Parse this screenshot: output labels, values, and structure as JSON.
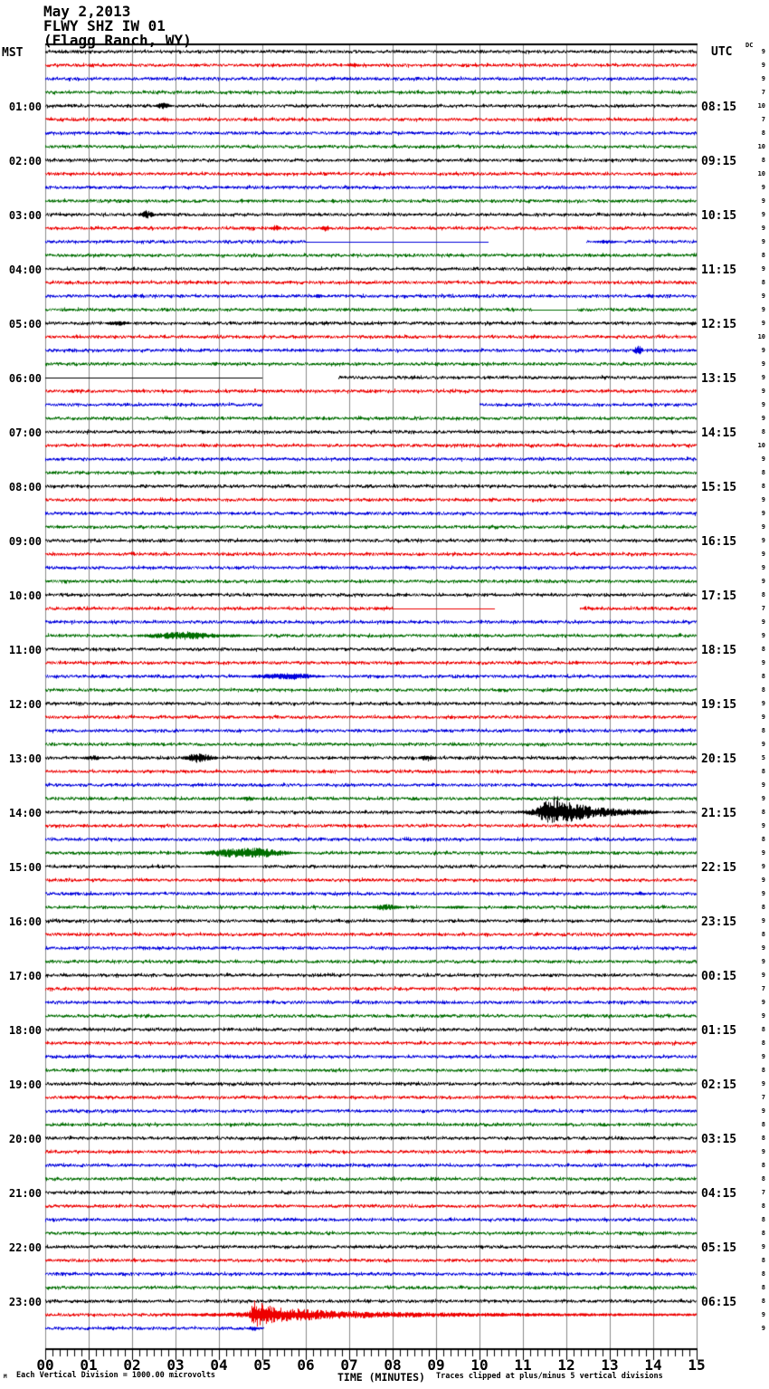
{
  "header": {
    "date": "May 2,2013",
    "station": "FLWY SHZ IW 01",
    "location": "(Flagg Ranch, WY)"
  },
  "left_axis": {
    "label": "MST",
    "hour_labels": [
      "01:00",
      "02:00",
      "03:00",
      "04:00",
      "05:00",
      "06:00",
      "07:00",
      "08:00",
      "09:00",
      "10:00",
      "11:00",
      "12:00",
      "13:00",
      "14:00",
      "15:00",
      "16:00",
      "17:00",
      "18:00",
      "19:00",
      "20:00",
      "21:00",
      "22:00",
      "23:00"
    ]
  },
  "right_axis": {
    "label": "UTC",
    "dc_header": "DC",
    "hour_labels": [
      "08:15",
      "09:15",
      "10:15",
      "11:15",
      "12:15",
      "13:15",
      "14:15",
      "15:15",
      "16:15",
      "17:15",
      "18:15",
      "19:15",
      "20:15",
      "21:15",
      "22:15",
      "23:15",
      "00:15",
      "01:15",
      "02:15",
      "03:15",
      "04:15",
      "05:15",
      "06:15"
    ]
  },
  "x_axis": {
    "title": "TIME (MINUTES)",
    "tick_labels": [
      "00",
      "01",
      "02",
      "03",
      "04",
      "05",
      "06",
      "07",
      "08",
      "09",
      "10",
      "11",
      "12",
      "13",
      "14",
      "15"
    ]
  },
  "footer": {
    "corner_mark": "M",
    "scale_note": "Each Vertical Division = 1000.00 microvolts",
    "clip_note": "Traces clipped at plus/minus 5 vertical divisions"
  },
  "colors": {
    "background": "#ffffff",
    "grid": "#8c8c8c",
    "axis": "#000000"
  },
  "chart_data": {
    "type": "line",
    "description": "24-hour seismic helicorder record; each row is 15 minutes, 4 rows per hour, colors cycle black/red/blue/green",
    "xlabel": "TIME (MINUTES)",
    "x_range_minutes": [
      0,
      15
    ],
    "minutes_per_row": 15,
    "rows_per_hour": 4,
    "num_rows": 95,
    "minor_ticks_per_minute": 6,
    "row_colors_cycle": [
      "#000000",
      "#ee0000",
      "#0000dd",
      "#006e00"
    ],
    "hour_label_first_row": 5,
    "hour_label_row_step": 4,
    "dc_values": [
      9,
      9,
      9,
      7,
      10,
      7,
      8,
      10,
      8,
      10,
      9,
      9,
      9,
      9,
      9,
      8,
      9,
      8,
      9,
      9,
      9,
      10,
      9,
      9,
      9,
      9,
      9,
      9,
      8,
      10,
      9,
      8,
      8,
      9,
      9,
      9,
      9,
      9,
      9,
      9,
      8,
      7,
      9,
      9,
      8,
      9,
      8,
      8,
      9,
      9,
      8,
      9,
      5,
      8,
      9,
      9,
      8,
      9,
      8,
      9,
      9,
      9,
      9,
      8,
      9,
      8,
      9,
      9,
      9,
      7,
      9,
      9,
      8,
      8,
      9,
      8,
      9,
      7,
      9,
      8,
      8,
      9,
      8,
      8,
      7,
      8,
      8,
      8,
      9,
      8,
      8,
      8,
      8,
      9,
      9
    ],
    "gaps": [
      {
        "row": 15,
        "start": 10.2,
        "end": 12.45
      },
      {
        "row": 25,
        "start": 5.0,
        "end": 6.75
      },
      {
        "row": 27,
        "start": 5.0,
        "end": 10.0
      },
      {
        "row": 42,
        "start": 10.35,
        "end": 12.3
      }
    ],
    "quiet_segments": [
      {
        "row": 15,
        "start": 6.0,
        "end": 10.2
      },
      {
        "row": 20,
        "start": 11.2,
        "end": 12.25
      },
      {
        "row": 25,
        "start": 0,
        "end": 5.0
      },
      {
        "row": 42,
        "start": 8.0,
        "end": 10.35
      }
    ],
    "truncated_rows": [
      {
        "row": 95,
        "end_minute": 5.05
      }
    ],
    "events": [
      {
        "row": 2,
        "start": 6.85,
        "end": 7.3,
        "amp": 3
      },
      {
        "row": 5,
        "start": 2.45,
        "end": 2.95,
        "amp": 4
      },
      {
        "row": 7,
        "start": 1.6,
        "end": 1.85,
        "amp": 3
      },
      {
        "row": 9,
        "start": 10.8,
        "end": 11.05,
        "amp": 2.5
      },
      {
        "row": 10,
        "start": 5.8,
        "end": 6.05,
        "amp": 2
      },
      {
        "row": 11,
        "start": 4.1,
        "end": 4.3,
        "amp": 2.5
      },
      {
        "row": 12,
        "start": 4.45,
        "end": 4.6,
        "amp": 3
      },
      {
        "row": 12,
        "start": 6.55,
        "end": 6.7,
        "amp": 3
      },
      {
        "row": 13,
        "start": 2.1,
        "end": 2.55,
        "amp": 5
      },
      {
        "row": 13,
        "start": 8.4,
        "end": 8.6,
        "amp": 1.5
      },
      {
        "row": 14,
        "start": 5.15,
        "end": 5.45,
        "amp": 4
      },
      {
        "row": 14,
        "start": 6.3,
        "end": 6.6,
        "amp": 4
      },
      {
        "row": 15,
        "start": 12.55,
        "end": 13.3,
        "amp": 2.5
      },
      {
        "row": 17,
        "start": 14.75,
        "end": 15,
        "amp": 2
      },
      {
        "row": 19,
        "start": 5.2,
        "end": 5.4,
        "amp": 2
      },
      {
        "row": 19,
        "start": 6.15,
        "end": 6.4,
        "amp": 3
      },
      {
        "row": 19,
        "start": 11.5,
        "end": 11.7,
        "amp": 2
      },
      {
        "row": 19,
        "start": 13.8,
        "end": 14.05,
        "amp": 3
      },
      {
        "row": 20,
        "start": 6.85,
        "end": 6.95,
        "amp": 3
      },
      {
        "row": 21,
        "start": 1.35,
        "end": 2.0,
        "amp": 4
      },
      {
        "row": 21,
        "start": 14.8,
        "end": 15,
        "amp": 3
      },
      {
        "row": 22,
        "start": 2.5,
        "end": 2.6,
        "amp": 2
      },
      {
        "row": 23,
        "start": 13.5,
        "end": 13.8,
        "amp": 6
      },
      {
        "row": 44,
        "envelope": [
          [
            2.0,
            1
          ],
          [
            2.6,
            3
          ],
          [
            3.3,
            5
          ],
          [
            3.9,
            2.5
          ],
          [
            4.6,
            1.5
          ],
          [
            5.2,
            0
          ]
        ]
      },
      {
        "row": 47,
        "envelope": [
          [
            4.5,
            1
          ],
          [
            5.2,
            3
          ],
          [
            5.7,
            4
          ],
          [
            6.2,
            2
          ],
          [
            6.7,
            0
          ]
        ]
      },
      {
        "row": 49,
        "start": 4.95,
        "end": 5.15,
        "amp": 1.5
      },
      {
        "row": 50,
        "start": 2.05,
        "end": 2.2,
        "amp": 1.5
      },
      {
        "row": 51,
        "start": 3.25,
        "end": 3.4,
        "amp": 1.5
      },
      {
        "row": 53,
        "start": 0.75,
        "end": 1.45,
        "amp": 3
      },
      {
        "row": 53,
        "envelope": [
          [
            3.1,
            1
          ],
          [
            3.5,
            6
          ],
          [
            3.8,
            3
          ],
          [
            4.1,
            0
          ]
        ]
      },
      {
        "row": 53,
        "start": 8.55,
        "end": 9.05,
        "amp": 4
      },
      {
        "row": 54,
        "start": 5.85,
        "end": 6.0,
        "amp": 1.5
      },
      {
        "row": 54,
        "start": 6.75,
        "end": 6.9,
        "amp": 1.5
      },
      {
        "row": 54,
        "start": 7.25,
        "end": 7.4,
        "amp": 1.5
      },
      {
        "row": 56,
        "start": 4.35,
        "end": 4.95,
        "amp": 3
      },
      {
        "row": 57,
        "envelope": [
          [
            10.9,
            1.5
          ],
          [
            11.3,
            4
          ],
          [
            11.5,
            13
          ],
          [
            12.1,
            11
          ],
          [
            12.6,
            6
          ],
          [
            13.2,
            4
          ],
          [
            13.9,
            2.5
          ],
          [
            14.6,
            0
          ]
        ]
      },
      {
        "row": 60,
        "envelope": [
          [
            3.4,
            1
          ],
          [
            4.2,
            5
          ],
          [
            4.9,
            6
          ],
          [
            5.4,
            3
          ],
          [
            6.1,
            0
          ]
        ]
      },
      {
        "row": 61,
        "start": 3.1,
        "end": 5.0,
        "amp": 1.5
      },
      {
        "row": 63,
        "start": 13.55,
        "end": 13.85,
        "amp": 3
      },
      {
        "row": 64,
        "envelope": [
          [
            7.45,
            1
          ],
          [
            7.8,
            4
          ],
          [
            8.1,
            2
          ],
          [
            8.4,
            0
          ]
        ]
      },
      {
        "row": 64,
        "start": 8.85,
        "end": 9.95,
        "amp": 2
      },
      {
        "row": 64,
        "start": 10.35,
        "end": 10.85,
        "amp": 2
      },
      {
        "row": 65,
        "start": 10.85,
        "end": 11.25,
        "amp": 3
      },
      {
        "row": 82,
        "start": 12.35,
        "end": 12.65,
        "amp": 3
      },
      {
        "row": 82,
        "start": 12.8,
        "end": 13.15,
        "amp": 3
      },
      {
        "row": 94,
        "envelope": [
          [
            2.9,
            1.5
          ],
          [
            3.6,
            2
          ],
          [
            4.3,
            2.5
          ],
          [
            4.7,
            3.5
          ],
          [
            4.78,
            14
          ],
          [
            5.05,
            12
          ],
          [
            5.3,
            8
          ],
          [
            5.9,
            7
          ],
          [
            6.4,
            5
          ],
          [
            7.2,
            4
          ],
          [
            8.2,
            3
          ],
          [
            10.0,
            2.2
          ],
          [
            12.0,
            1.8
          ],
          [
            15.0,
            1.5
          ]
        ]
      },
      {
        "row": 95,
        "start": 4.6,
        "end": 5.0,
        "amp": 3
      }
    ]
  }
}
